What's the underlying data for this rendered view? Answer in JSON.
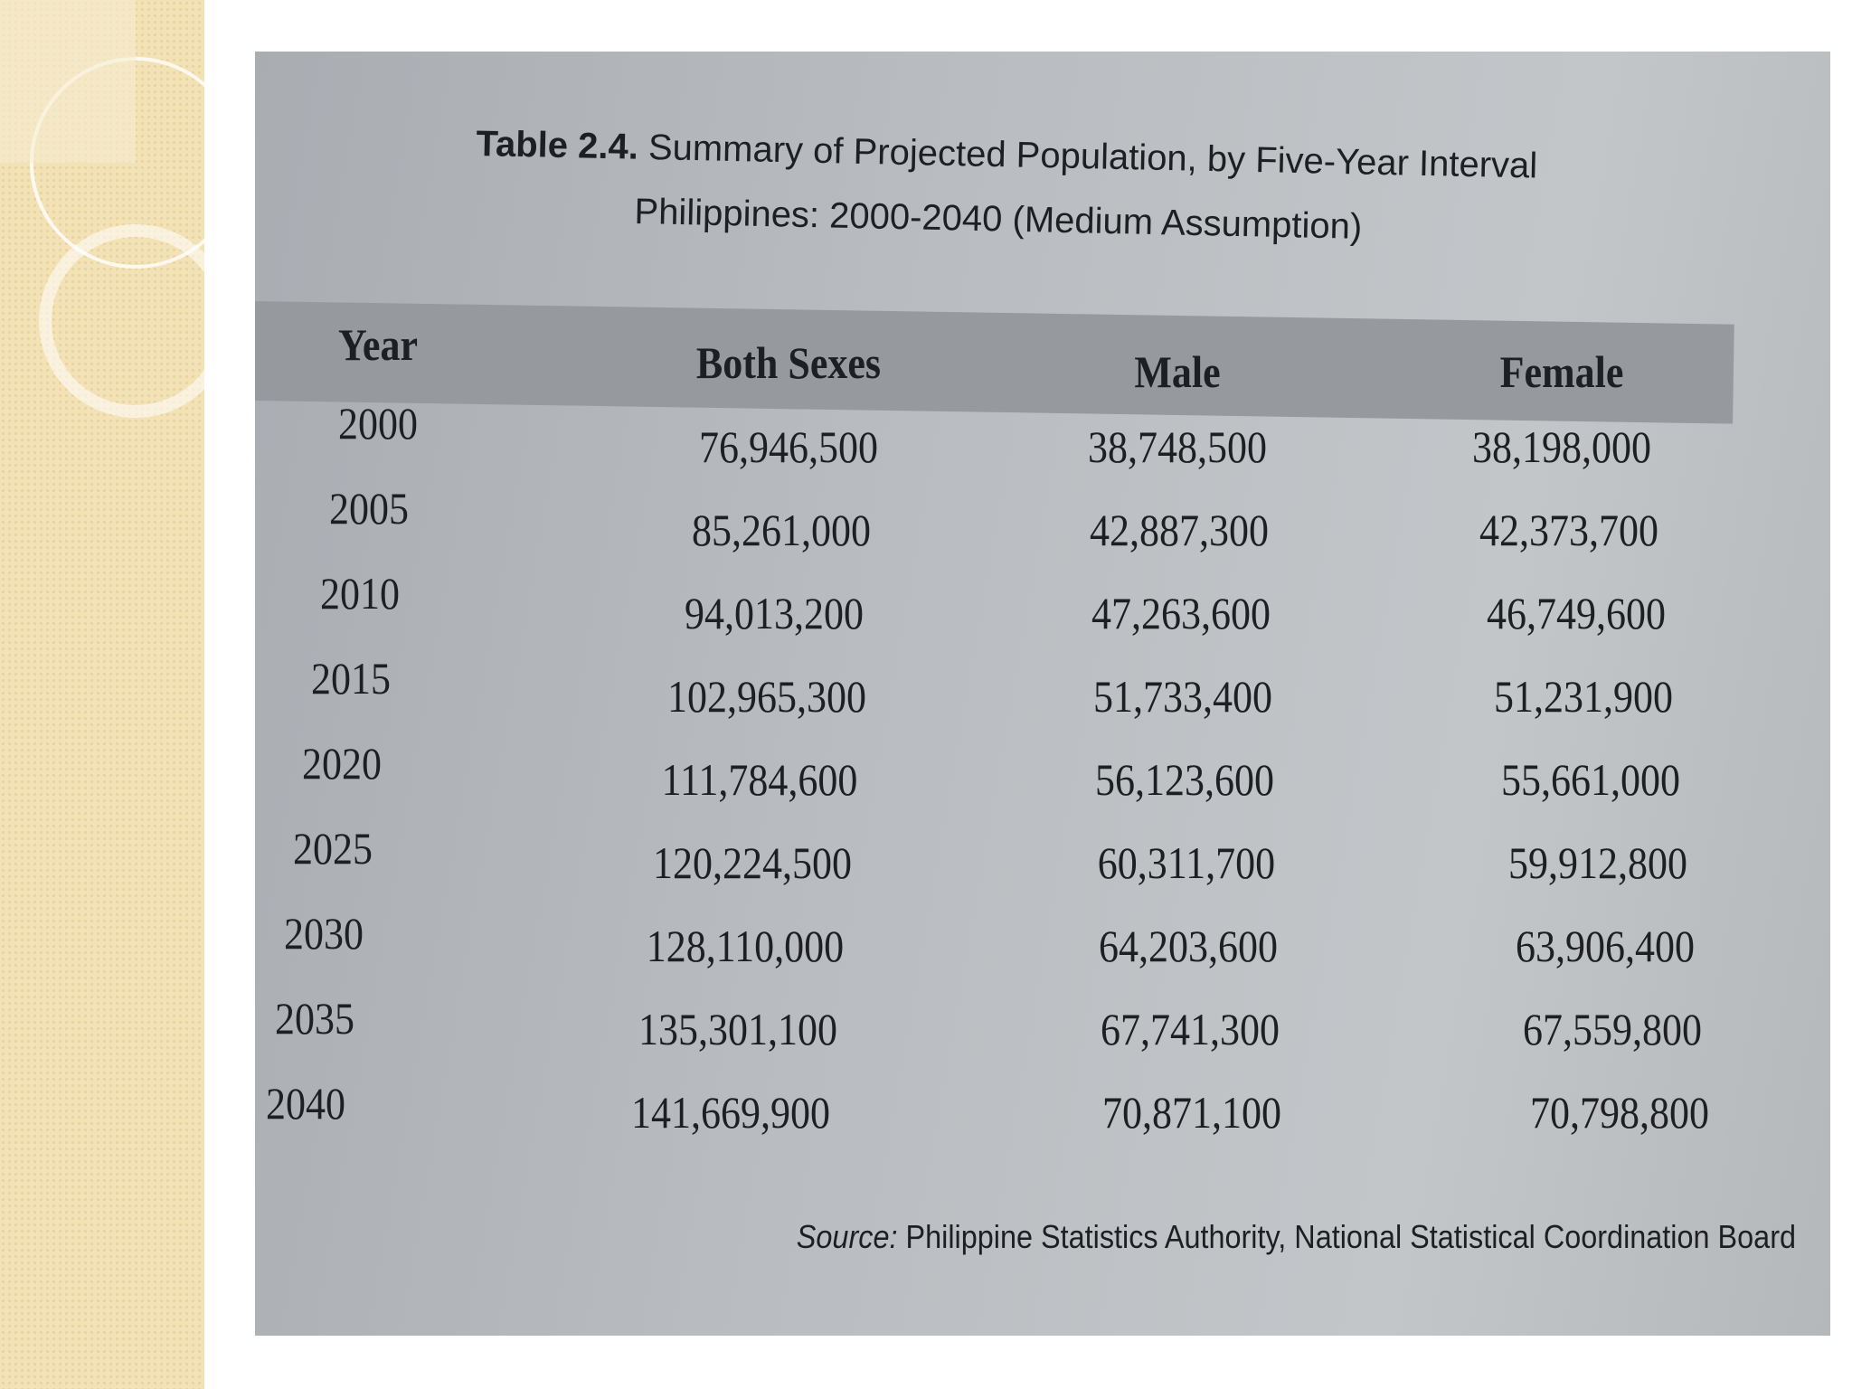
{
  "table": {
    "title_label": "Table 2.4.",
    "title": "Summary of Projected Population, by Five-Year Interval",
    "subtitle": "Philippines: 2000-2040 (Medium Assumption)",
    "header": [
      "Year",
      "Both Sexes",
      "Male",
      "Female"
    ],
    "rows": [
      [
        "2000",
        "76,946,500",
        "38,748,500",
        "38,198,000"
      ],
      [
        "2005",
        "85,261,000",
        "42,887,300",
        "42,373,700"
      ],
      [
        "2010",
        "94,013,200",
        "47,263,600",
        "46,749,600"
      ],
      [
        "2015",
        "102,965,300",
        "51,733,400",
        "51,231,900"
      ],
      [
        "2020",
        "111,784,600",
        "56,123,600",
        "55,661,000"
      ],
      [
        "2025",
        "120,224,500",
        "60,311,700",
        "59,912,800"
      ],
      [
        "2030",
        "128,110,000",
        "64,203,600",
        "63,906,400"
      ],
      [
        "2035",
        "135,301,100",
        "67,741,300",
        "67,559,800"
      ],
      [
        "2040",
        "141,669,900",
        "70,871,100",
        "70,798,800"
      ]
    ],
    "source_label": "Source:",
    "source": "Philippine Statistics Authority, National Statistical Coordination Board"
  }
}
